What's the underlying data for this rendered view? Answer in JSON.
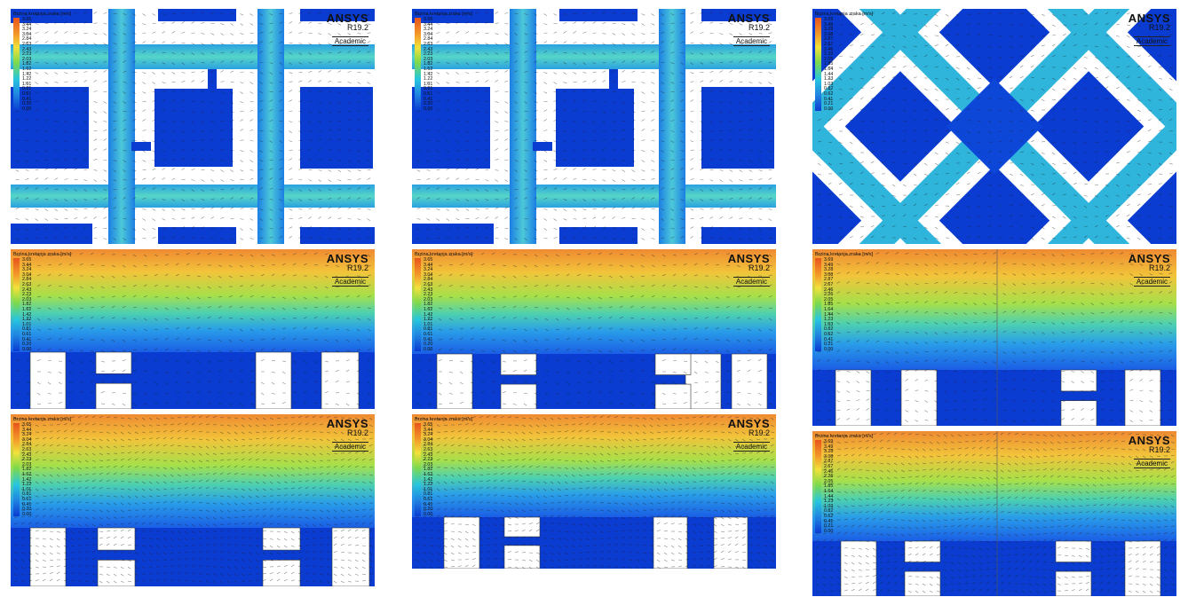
{
  "legend_title": "Brzina kretanja zraka [m/s]",
  "brand": {
    "name": "ANSYS",
    "version": "R19.2",
    "edition": "Academic"
  },
  "scale_a": [
    "3.65",
    "3.44",
    "3.24",
    "3.04",
    "2.84",
    "2.63",
    "2.43",
    "2.23",
    "2.03",
    "1.82",
    "1.62",
    "1.42",
    "1.22",
    "1.01",
    "0.81",
    "0.61",
    "0.41",
    "0.20",
    "0.00"
  ],
  "scale_b": [
    "3.69",
    "3.49",
    "3.28",
    "3.08",
    "2.87",
    "2.67",
    "2.46",
    "2.26",
    "2.05",
    "1.85",
    "1.64",
    "1.44",
    "1.23",
    "1.03",
    "0.82",
    "0.62",
    "0.41",
    "0.21",
    "0.00"
  ],
  "colors": {
    "low": "#0a3cd2",
    "mid": "#26c6e0",
    "green": "#7ed94a",
    "yellow": "#f2e23a",
    "high": "#e8541c"
  },
  "panels": [
    {
      "id": "plan-1",
      "scale": "scale_a"
    },
    {
      "id": "plan-2",
      "scale": "scale_a"
    },
    {
      "id": "plan-3",
      "scale": "scale_b"
    },
    {
      "id": "section-1a",
      "scale": "scale_a"
    },
    {
      "id": "section-2a",
      "scale": "scale_a"
    },
    {
      "id": "section-3a",
      "scale": "scale_b"
    },
    {
      "id": "section-1b",
      "scale": "scale_a"
    },
    {
      "id": "section-2b",
      "scale": "scale_a"
    },
    {
      "id": "section-3b",
      "scale": "scale_b"
    }
  ]
}
